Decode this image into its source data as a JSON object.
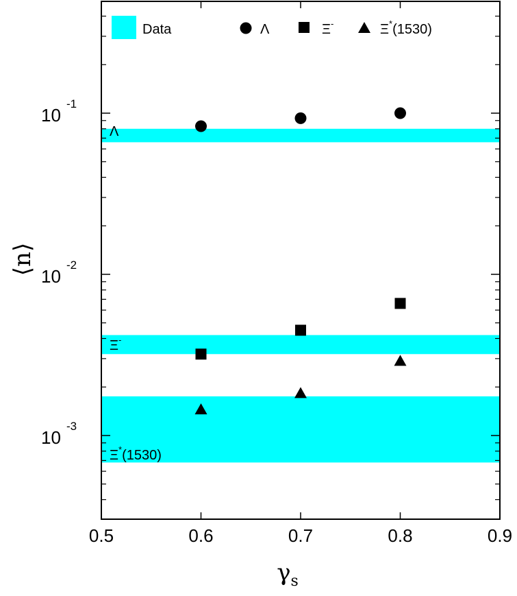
{
  "chart_data": {
    "type": "scatter",
    "xlabel": "γ",
    "xlabel_sub": "s",
    "ylabel": "⟨n⟩",
    "xlim": [
      0.5,
      0.9
    ],
    "ylim_log10": [
      -3.5,
      0.15
    ],
    "yscale": "log",
    "x_ticks": [
      "0.5",
      "0.6",
      "0.7",
      "0.8",
      "0.9"
    ],
    "y_tick_labels": [
      {
        "base": "10",
        "exp": "-1",
        "value": 0.1
      },
      {
        "base": "10",
        "exp": "-2",
        "value": 0.01
      },
      {
        "base": "10",
        "exp": "-3",
        "value": 0.001
      }
    ],
    "legend": {
      "data_label": "Data",
      "lambda_label": "Λ",
      "xi_label": "Ξ",
      "xi_sup": "-",
      "xistar_label": "Ξ",
      "xistar_sup": "*",
      "xistar_suffix": "(1530)"
    },
    "bands": [
      {
        "name": "Λ",
        "label": "Λ",
        "sup": "",
        "suffix": "",
        "low": 0.066,
        "high": 0.08,
        "color": "#00ffff"
      },
      {
        "name": "Ξ-",
        "label": "Ξ",
        "sup": "-",
        "suffix": "",
        "low": 0.0032,
        "high": 0.0042,
        "color": "#00ffff"
      },
      {
        "name": "Ξ*(1530)",
        "label": "Ξ",
        "sup": "*",
        "suffix": "(1530)",
        "low": 0.00068,
        "high": 0.00175,
        "color": "#00ffff"
      }
    ],
    "series": [
      {
        "name": "Λ",
        "marker": "circle",
        "x": [
          0.6,
          0.7,
          0.8
        ],
        "y": [
          0.083,
          0.093,
          0.1
        ]
      },
      {
        "name": "Ξ-",
        "marker": "square",
        "x": [
          0.6,
          0.7,
          0.8
        ],
        "y": [
          0.0032,
          0.0045,
          0.0066
        ]
      },
      {
        "name": "Ξ*(1530)",
        "marker": "triangle",
        "x": [
          0.6,
          0.7,
          0.8
        ],
        "y": [
          0.00145,
          0.00183,
          0.0029
        ]
      }
    ]
  }
}
